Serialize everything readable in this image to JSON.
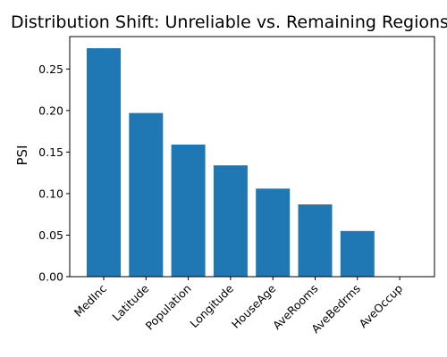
{
  "chart_data": {
    "type": "bar",
    "title": "Distribution Shift: Unreliable vs. Remaining Regions",
    "xlabel": "",
    "ylabel": "PSI",
    "categories": [
      "MedInc",
      "Latitude",
      "Population",
      "Longitude",
      "HouseAge",
      "AveRooms",
      "AveBedrms",
      "AveOccup"
    ],
    "values": [
      0.275,
      0.197,
      0.159,
      0.134,
      0.106,
      0.087,
      0.055,
      0.0
    ],
    "ylim": [
      0,
      0.289
    ],
    "yticks": [
      0.0,
      0.05,
      0.1,
      0.15,
      0.2,
      0.25
    ],
    "ytick_labels": [
      "0.00",
      "0.05",
      "0.10",
      "0.15",
      "0.20",
      "0.25"
    ],
    "bar_color": "#1f77b4",
    "grid": false,
    "legend": "none"
  }
}
